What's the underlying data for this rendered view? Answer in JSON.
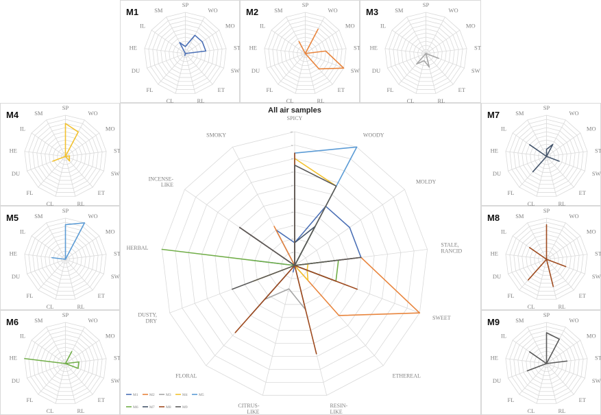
{
  "chart_data": {
    "type": "radar",
    "title": "All air samples",
    "scale": [
      0,
      10
    ],
    "ticks": [
      0,
      1,
      2,
      3,
      4,
      5,
      6,
      7,
      8,
      9,
      10
    ],
    "axes_full": [
      [
        "SPICY"
      ],
      [
        "WOODY"
      ],
      [
        "MOLDY"
      ],
      [
        "STALE,",
        "RANCID"
      ],
      [
        "SWEET"
      ],
      [
        "ETHEREAL"
      ],
      [
        "RESIN-",
        "LIKE"
      ],
      [
        "CITRUS-",
        "LIKE"
      ],
      [
        "FLORAL"
      ],
      [
        "DUSTY,",
        "DRY"
      ],
      [
        "HERBAL"
      ],
      [
        "INCENSE-",
        "LIKE"
      ],
      [
        "SMOKY"
      ]
    ],
    "axes_short": [
      "SP",
      "WO",
      "MO",
      "ST",
      "SW",
      "ET",
      "RL",
      "CL",
      "FL",
      "DU",
      "HE",
      "IL",
      "SM"
    ],
    "legend_placement": "bottom-left",
    "series": [
      {
        "name": "M1",
        "color": "#4a6fb5",
        "values": [
          1.7,
          5,
          5,
          5,
          0,
          0,
          0,
          0.5,
          0,
          0,
          0,
          0,
          3
        ]
      },
      {
        "name": "M2",
        "color": "#e8843c",
        "values": [
          0,
          6.7,
          0,
          5,
          10,
          5,
          0,
          0,
          0,
          0,
          0,
          0,
          3.3
        ]
      },
      {
        "name": "M3",
        "color": "#a5a5a5",
        "values": [
          0,
          0,
          0,
          0,
          3.3,
          0,
          3.4,
          1.8,
          3.4,
          0,
          0,
          0,
          0
        ]
      },
      {
        "name": "M4",
        "color": "#f2c12e",
        "values": [
          8,
          6.7,
          0,
          1,
          1,
          1.5,
          0,
          0,
          0,
          3.3,
          0,
          0,
          0
        ]
      },
      {
        "name": "M5",
        "color": "#5b9bd5",
        "values": [
          8.4,
          10,
          0,
          0,
          0,
          0,
          0,
          0,
          0,
          0,
          3.3,
          0,
          0
        ]
      },
      {
        "name": "M6",
        "color": "#70ad47",
        "values": [
          0,
          3.3,
          0,
          3.3,
          3.3,
          0,
          0,
          0,
          0,
          0,
          10,
          0,
          0
        ]
      },
      {
        "name": "M7",
        "color": "#44546a",
        "values": [
          1.7,
          3.3,
          0,
          0,
          3.3,
          0,
          0,
          0,
          5,
          0,
          0,
          5,
          0
        ]
      },
      {
        "name": "M8",
        "color": "#9e4a1e",
        "values": [
          8.4,
          0,
          0,
          0,
          5,
          0,
          6.8,
          0,
          6.7,
          0,
          0,
          5,
          0
        ]
      },
      {
        "name": "M9",
        "color": "#595959",
        "values": [
          7.5,
          6.7,
          0,
          5,
          0,
          0,
          0,
          0,
          0,
          5,
          0,
          5,
          0
        ]
      }
    ]
  }
}
